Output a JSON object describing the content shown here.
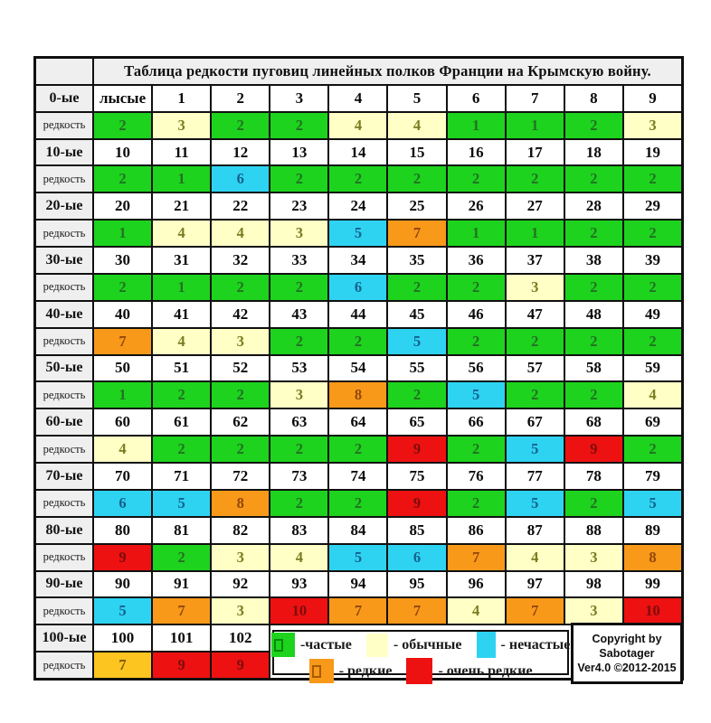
{
  "title": "Таблица редкости пуговиц линейных полков Франции на Крымскую войну.",
  "row_label_rarity": "редкость",
  "palette": {
    "g": {
      "bg": "#1dd31d",
      "fg": "#247024",
      "inner": "#0a870a",
      "sw": [
        26,
        27
      ]
    },
    "y": {
      "bg": "#ffffc6",
      "fg": "#7b7b20",
      "inner": "#b0b040",
      "sw": [
        24,
        26
      ]
    },
    "c": {
      "bg": "#2ed3f2",
      "fg": "#14618c",
      "inner": "#1090b0",
      "sw": [
        21,
        29
      ]
    },
    "o": {
      "bg": "#f8991a",
      "fg": "#93470a",
      "inner": "#a85b00",
      "sw": [
        27,
        27
      ]
    },
    "r": {
      "bg": "#ee1111",
      "fg": "#7c0d0d",
      "inner": "#900808",
      "sw": [
        29,
        29
      ]
    },
    "a": {
      "bg": "#fdc51f",
      "fg": "#7c5a08",
      "inner": "#a07808",
      "sw": [
        24,
        26
      ]
    }
  },
  "rows": [
    {
      "label": "0-ые",
      "numbers": [
        "лысые",
        "1",
        "2",
        "3",
        "4",
        "5",
        "6",
        "7",
        "8",
        "9"
      ],
      "rarity": [
        [
          "2",
          "g"
        ],
        [
          "3",
          "y"
        ],
        [
          "2",
          "g"
        ],
        [
          "2",
          "g"
        ],
        [
          "4",
          "y"
        ],
        [
          "4",
          "y"
        ],
        [
          "1",
          "g"
        ],
        [
          "1",
          "g"
        ],
        [
          "2",
          "g"
        ],
        [
          "3",
          "y"
        ]
      ]
    },
    {
      "label": "10-ые",
      "numbers": [
        "10",
        "11",
        "12",
        "13",
        "14",
        "15",
        "16",
        "17",
        "18",
        "19"
      ],
      "rarity": [
        [
          "2",
          "g"
        ],
        [
          "1",
          "g"
        ],
        [
          "6",
          "c"
        ],
        [
          "2",
          "g"
        ],
        [
          "2",
          "g"
        ],
        [
          "2",
          "g"
        ],
        [
          "2",
          "g"
        ],
        [
          "2",
          "g"
        ],
        [
          "2",
          "g"
        ],
        [
          "2",
          "g"
        ]
      ]
    },
    {
      "label": "20-ые",
      "numbers": [
        "20",
        "21",
        "22",
        "23",
        "24",
        "25",
        "26",
        "27",
        "28",
        "29"
      ],
      "rarity": [
        [
          "1",
          "g"
        ],
        [
          "4",
          "y"
        ],
        [
          "4",
          "y"
        ],
        [
          "3",
          "y"
        ],
        [
          "5",
          "c"
        ],
        [
          "7",
          "o"
        ],
        [
          "1",
          "g"
        ],
        [
          "1",
          "g"
        ],
        [
          "2",
          "g"
        ],
        [
          "2",
          "g"
        ]
      ]
    },
    {
      "label": "30-ые",
      "numbers": [
        "30",
        "31",
        "32",
        "33",
        "34",
        "35",
        "36",
        "37",
        "38",
        "39"
      ],
      "rarity": [
        [
          "2",
          "g"
        ],
        [
          "1",
          "g"
        ],
        [
          "2",
          "g"
        ],
        [
          "2",
          "g"
        ],
        [
          "6",
          "c"
        ],
        [
          "2",
          "g"
        ],
        [
          "2",
          "g"
        ],
        [
          "3",
          "y"
        ],
        [
          "2",
          "g"
        ],
        [
          "2",
          "g"
        ]
      ]
    },
    {
      "label": "40-ые",
      "numbers": [
        "40",
        "41",
        "42",
        "43",
        "44",
        "45",
        "46",
        "47",
        "48",
        "49"
      ],
      "rarity": [
        [
          "7",
          "o"
        ],
        [
          "4",
          "y"
        ],
        [
          "3",
          "y"
        ],
        [
          "2",
          "g"
        ],
        [
          "2",
          "g"
        ],
        [
          "5",
          "c"
        ],
        [
          "2",
          "g"
        ],
        [
          "2",
          "g"
        ],
        [
          "2",
          "g"
        ],
        [
          "2",
          "g"
        ]
      ]
    },
    {
      "label": "50-ые",
      "numbers": [
        "50",
        "51",
        "52",
        "53",
        "54",
        "55",
        "56",
        "57",
        "58",
        "59"
      ],
      "rarity": [
        [
          "1",
          "g"
        ],
        [
          "2",
          "g"
        ],
        [
          "2",
          "g"
        ],
        [
          "3",
          "y"
        ],
        [
          "8",
          "o"
        ],
        [
          "2",
          "g"
        ],
        [
          "5",
          "c"
        ],
        [
          "2",
          "g"
        ],
        [
          "2",
          "g"
        ],
        [
          "4",
          "y"
        ]
      ]
    },
    {
      "label": "60-ые",
      "numbers": [
        "60",
        "61",
        "62",
        "63",
        "64",
        "65",
        "66",
        "67",
        "68",
        "69"
      ],
      "rarity": [
        [
          "4",
          "y"
        ],
        [
          "2",
          "g"
        ],
        [
          "2",
          "g"
        ],
        [
          "2",
          "g"
        ],
        [
          "2",
          "g"
        ],
        [
          "9",
          "r"
        ],
        [
          "2",
          "g"
        ],
        [
          "5",
          "c"
        ],
        [
          "9",
          "r"
        ],
        [
          "2",
          "g"
        ]
      ]
    },
    {
      "label": "70-ые",
      "numbers": [
        "70",
        "71",
        "72",
        "73",
        "74",
        "75",
        "76",
        "77",
        "78",
        "79"
      ],
      "rarity": [
        [
          "6",
          "c"
        ],
        [
          "5",
          "c"
        ],
        [
          "8",
          "o"
        ],
        [
          "2",
          "g"
        ],
        [
          "2",
          "g"
        ],
        [
          "9",
          "r"
        ],
        [
          "2",
          "g"
        ],
        [
          "5",
          "c"
        ],
        [
          "2",
          "g"
        ],
        [
          "5",
          "c"
        ]
      ]
    },
    {
      "label": "80-ые",
      "numbers": [
        "80",
        "81",
        "82",
        "83",
        "84",
        "85",
        "86",
        "87",
        "88",
        "89"
      ],
      "rarity": [
        [
          "9",
          "r"
        ],
        [
          "2",
          "g"
        ],
        [
          "3",
          "y"
        ],
        [
          "4",
          "y"
        ],
        [
          "5",
          "c"
        ],
        [
          "6",
          "c"
        ],
        [
          "7",
          "o"
        ],
        [
          "4",
          "y"
        ],
        [
          "3",
          "y"
        ],
        [
          "8",
          "o"
        ]
      ]
    },
    {
      "label": "90-ые",
      "numbers": [
        "90",
        "91",
        "92",
        "93",
        "94",
        "95",
        "96",
        "97",
        "98",
        "99"
      ],
      "rarity": [
        [
          "5",
          "c"
        ],
        [
          "7",
          "o"
        ],
        [
          "3",
          "y"
        ],
        [
          "10",
          "r"
        ],
        [
          "7",
          "o"
        ],
        [
          "7",
          "o"
        ],
        [
          "4",
          "y"
        ],
        [
          "7",
          "o"
        ],
        [
          "3",
          "y"
        ],
        [
          "10",
          "r"
        ]
      ]
    },
    {
      "label": "100-ые",
      "numbers": [
        "100",
        "101",
        "102"
      ],
      "rarity": [
        [
          "7",
          "a"
        ],
        [
          "9",
          "r"
        ],
        [
          "9",
          "r"
        ]
      ]
    }
  ],
  "legend": {
    "rows": [
      [
        {
          "label": "-частые",
          "c": "g",
          "inner": true
        },
        {
          "label": "- обычные",
          "c": "y",
          "inner": false
        },
        {
          "label": "- нечастые",
          "c": "c",
          "inner": false
        }
      ],
      [
        {
          "label": "- редкие",
          "c": "o",
          "inner": true
        },
        {
          "label": "- очень редкие",
          "c": "r",
          "inner": false
        }
      ]
    ]
  },
  "copyright": {
    "line1": "Copyright by",
    "line2": "Sabotager",
    "line3": "Ver4.0 ©2012-2015"
  }
}
